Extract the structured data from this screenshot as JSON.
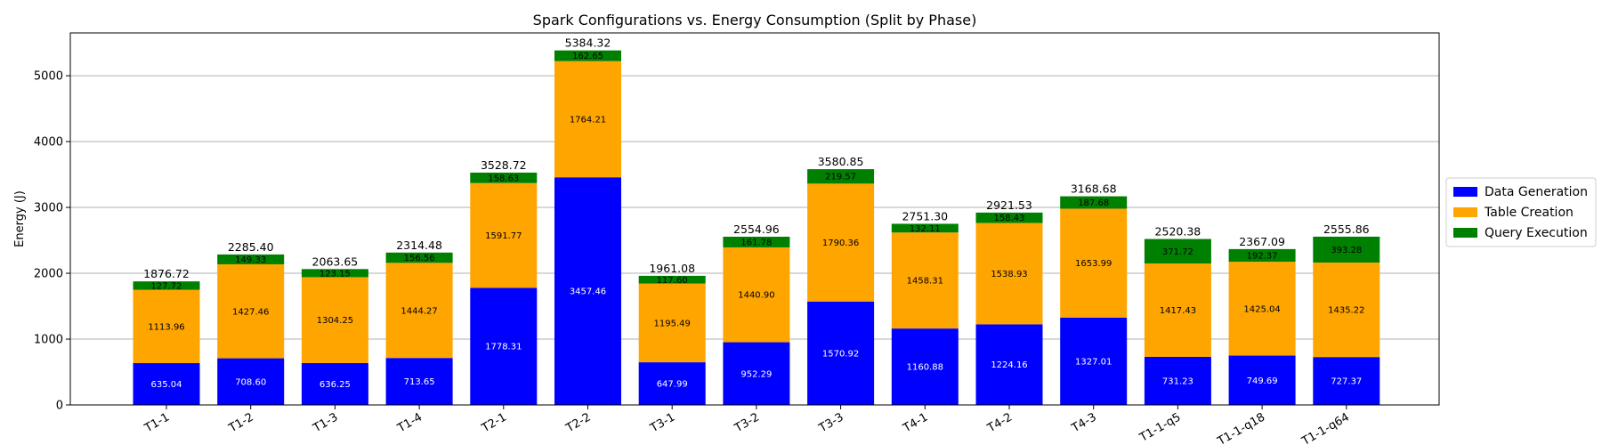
{
  "chart_data": {
    "type": "bar",
    "stacked": true,
    "title": "Spark Configurations vs. Energy Consumption (Split by Phase)",
    "xlabel": "",
    "ylabel": "Energy (J)",
    "ylim": [
      0,
      5650
    ],
    "yticks": [
      0,
      1000,
      2000,
      3000,
      4000,
      5000
    ],
    "grid": "horizontal",
    "legend_position": "right",
    "categories": [
      "T1-1",
      "T1-2",
      "T1-3",
      "T1-4",
      "T2-1",
      "T2-2",
      "T3-1",
      "T3-2",
      "T3-3",
      "T4-1",
      "T4-2",
      "T4-3",
      "T1-1-q5",
      "T1-1-q18",
      "T1-1-q64"
    ],
    "series": [
      {
        "name": "Data Generation",
        "color": "#0000ff",
        "label_color": "#ffffff",
        "values": [
          635.04,
          708.6,
          636.25,
          713.65,
          1778.31,
          3457.46,
          647.99,
          952.29,
          1570.92,
          1160.88,
          1224.16,
          1327.01,
          731.23,
          749.69,
          727.37
        ],
        "labels": [
          "635.04",
          "708.60",
          "636.25",
          "713.65",
          "1778.31",
          "3457.46",
          "647.99",
          "952.29",
          "1570.92",
          "1160.88",
          "1224.16",
          "1327.01",
          "731.23",
          "749.69",
          "727.37"
        ]
      },
      {
        "name": "Table Creation",
        "color": "#ffa500",
        "label_color": "#000000",
        "values": [
          1113.96,
          1427.46,
          1304.25,
          1444.27,
          1591.77,
          1764.21,
          1195.49,
          1440.9,
          1790.36,
          1458.31,
          1538.93,
          1653.99,
          1417.43,
          1425.04,
          1435.22
        ],
        "labels": [
          "1113.96",
          "1427.46",
          "1304.25",
          "1444.27",
          "1591.77",
          "1764.21",
          "1195.49",
          "1440.90",
          "1790.36",
          "1458.31",
          "1538.93",
          "1653.99",
          "1417.43",
          "1425.04",
          "1435.22"
        ]
      },
      {
        "name": "Query Execution",
        "color": "#008000",
        "label_color": "#000000",
        "values": [
          127.72,
          149.33,
          123.15,
          156.56,
          158.63,
          162.65,
          117.6,
          161.78,
          219.57,
          132.11,
          158.43,
          187.68,
          371.72,
          192.37,
          393.28
        ],
        "labels": [
          "127.72",
          "149.33",
          "123.15",
          "156.56",
          "158.63",
          "162.65",
          "117.60",
          "161.78",
          "219.57",
          "132.11",
          "158.43",
          "187.68",
          "371.72",
          "192.37",
          "393.28"
        ]
      }
    ],
    "totals": [
      1876.72,
      2285.4,
      2063.65,
      2314.48,
      3528.72,
      5384.32,
      1961.08,
      2554.96,
      3580.85,
      2751.3,
      2921.53,
      3168.68,
      2520.38,
      2367.09,
      2555.86
    ],
    "total_labels": [
      "1876.72",
      "2285.40",
      "2063.65",
      "2314.48",
      "3528.72",
      "5384.32",
      "1961.08",
      "2554.96",
      "3580.85",
      "2751.30",
      "2921.53",
      "3168.68",
      "2520.38",
      "2367.09",
      "2555.86"
    ]
  }
}
